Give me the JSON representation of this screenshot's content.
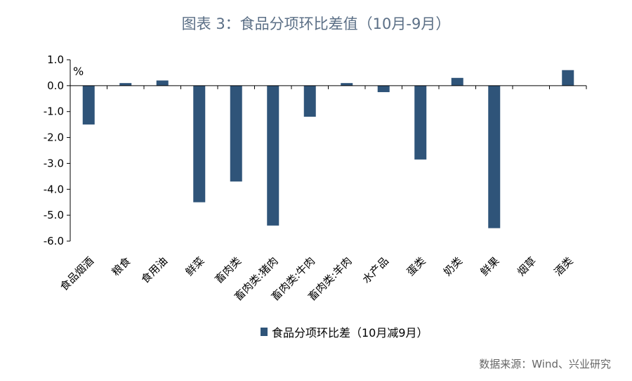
{
  "title": "图表 3：食品分项环比差值（10月-9月）",
  "unit": "%",
  "source": "数据来源：Wind、兴业研究",
  "colors": {
    "bar": "#2f5479",
    "title": "#5b6f86"
  },
  "chart_data": {
    "type": "bar",
    "categories": [
      "食品烟酒",
      "粮食",
      "食用油",
      "鲜菜",
      "畜肉类",
      "畜肉类:猪肉",
      "畜肉类:牛肉",
      "畜肉类:羊肉",
      "水产品",
      "蛋类",
      "奶类",
      "鲜果",
      "烟草",
      "酒类"
    ],
    "series": [
      {
        "name": "食品分项环比差（10月减9月）",
        "values": [
          -1.5,
          0.1,
          0.2,
          -4.5,
          -3.7,
          -5.4,
          -1.2,
          0.1,
          -0.25,
          -2.85,
          0.3,
          -5.5,
          0.0,
          0.6
        ]
      }
    ],
    "yticks": [
      "1.0",
      "0.0",
      "-1.0",
      "-2.0",
      "-3.0",
      "-4.0",
      "-5.0",
      "-6.0"
    ],
    "ylim": [
      -6,
      1
    ],
    "legend_position": "bottom",
    "grid": false
  }
}
